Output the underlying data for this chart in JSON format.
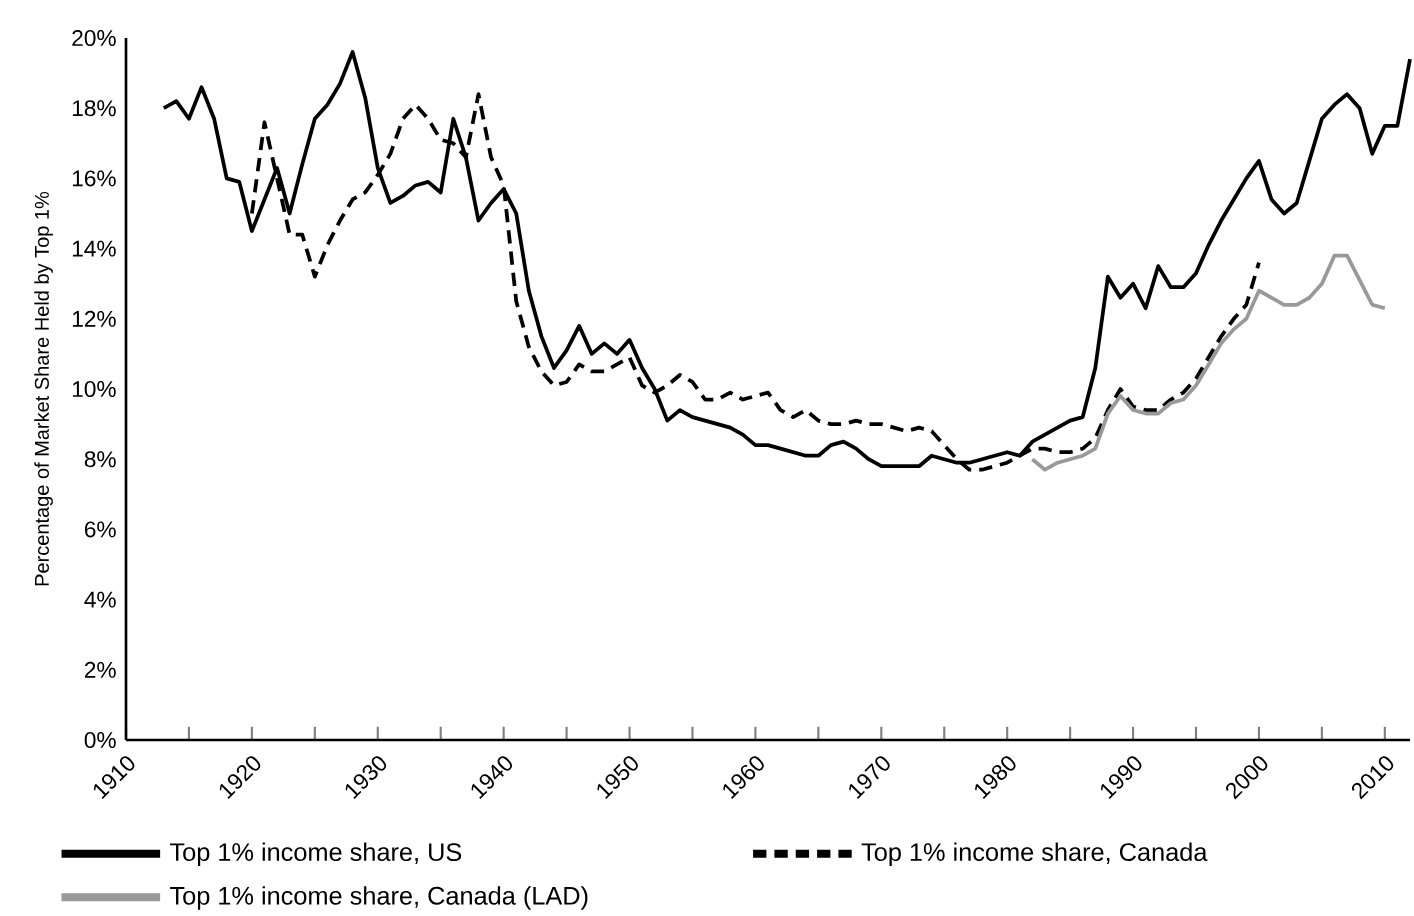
{
  "chart_data": {
    "type": "line",
    "ylabel": "Percentage of Market Share Held by Top 1%",
    "xlim": [
      1910,
      2012
    ],
    "ylim": [
      0,
      20
    ],
    "xticks": [
      1910,
      {
        "value": 1915,
        "label": null
      },
      1920,
      {
        "value": 1925,
        "label": null
      },
      1930,
      {
        "value": 1935,
        "label": null
      },
      1940,
      {
        "value": 1945,
        "label": null
      },
      1950,
      {
        "value": 1955,
        "label": null
      },
      1960,
      {
        "value": 1965,
        "label": null
      },
      1970,
      {
        "value": 1975,
        "label": null
      },
      1980,
      {
        "value": 1985,
        "label": null
      },
      1990,
      {
        "value": 1995,
        "label": null
      },
      2000,
      {
        "value": 2005,
        "label": null
      },
      2010
    ],
    "yticks": [
      {
        "value": 0,
        "label": "0%"
      },
      {
        "value": 2,
        "label": "2%"
      },
      {
        "value": 4,
        "label": "4%"
      },
      {
        "value": 6,
        "label": "6%"
      },
      {
        "value": 8,
        "label": "8%"
      },
      {
        "value": 10,
        "label": "10%"
      },
      {
        "value": 12,
        "label": "12%"
      },
      {
        "value": 14,
        "label": "14%"
      },
      {
        "value": 16,
        "label": "16%"
      },
      {
        "value": 18,
        "label": "18%"
      },
      {
        "value": 20,
        "label": "20%"
      }
    ],
    "legend": "bottom",
    "series": [
      {
        "name": "Top 1% income share, US",
        "color": "#000000",
        "line_style": "solid",
        "x": [
          1913,
          1914,
          1915,
          1916,
          1917,
          1918,
          1919,
          1920,
          1921,
          1922,
          1923,
          1924,
          1925,
          1926,
          1927,
          1928,
          1929,
          1930,
          1931,
          1932,
          1933,
          1934,
          1935,
          1936,
          1937,
          1938,
          1939,
          1940,
          1941,
          1942,
          1943,
          1944,
          1945,
          1946,
          1947,
          1948,
          1949,
          1950,
          1951,
          1952,
          1953,
          1954,
          1955,
          1956,
          1957,
          1958,
          1959,
          1960,
          1961,
          1962,
          1963,
          1964,
          1965,
          1966,
          1967,
          1968,
          1969,
          1970,
          1971,
          1972,
          1973,
          1974,
          1975,
          1976,
          1977,
          1978,
          1979,
          1980,
          1981,
          1982,
          1983,
          1984,
          1985,
          1986,
          1987,
          1988,
          1989,
          1990,
          1991,
          1992,
          1993,
          1994,
          1995,
          1996,
          1997,
          1998,
          1999,
          2000,
          2001,
          2002,
          2003,
          2004,
          2005,
          2006,
          2007,
          2008,
          2009,
          2010,
          2011,
          2012
        ],
        "values": [
          18.0,
          18.2,
          17.7,
          18.6,
          17.7,
          16.0,
          15.9,
          14.5,
          15.4,
          16.3,
          15.0,
          16.4,
          17.7,
          18.1,
          18.7,
          19.6,
          18.3,
          16.3,
          15.3,
          15.5,
          15.8,
          15.9,
          15.6,
          17.7,
          16.6,
          14.8,
          15.3,
          15.7,
          15.0,
          12.8,
          11.5,
          10.6,
          11.1,
          11.8,
          11.0,
          11.3,
          11.0,
          11.4,
          10.6,
          10.0,
          9.1,
          9.4,
          9.2,
          9.1,
          9.0,
          8.9,
          8.7,
          8.4,
          8.4,
          8.3,
          8.2,
          8.1,
          8.1,
          8.4,
          8.5,
          8.3,
          8.0,
          7.8,
          7.8,
          7.8,
          7.8,
          8.1,
          8.0,
          7.9,
          7.9,
          8.0,
          8.1,
          8.2,
          8.1,
          8.5,
          8.7,
          8.9,
          9.1,
          9.2,
          10.6,
          13.2,
          12.6,
          13.0,
          12.3,
          13.5,
          12.9,
          12.9,
          13.3,
          14.1,
          14.8,
          15.4,
          16.0,
          16.5,
          15.4,
          15.0,
          15.3,
          16.5,
          17.7,
          18.1,
          18.4,
          18.0,
          16.7,
          17.5,
          17.5,
          19.4
        ]
      },
      {
        "name": "Top 1% income share, Canada",
        "color": "#000000",
        "line_style": "dashed",
        "x": [
          1920,
          1921,
          1922,
          1923,
          1924,
          1925,
          1926,
          1927,
          1928,
          1929,
          1930,
          1931,
          1932,
          1933,
          1934,
          1935,
          1936,
          1937,
          1938,
          1939,
          1940,
          1941,
          1942,
          1943,
          1944,
          1945,
          1946,
          1947,
          1948,
          1949,
          1950,
          1951,
          1952,
          1953,
          1954,
          1955,
          1956,
          1957,
          1958,
          1959,
          1960,
          1961,
          1962,
          1963,
          1964,
          1965,
          1966,
          1967,
          1968,
          1969,
          1970,
          1971,
          1972,
          1973,
          1974,
          1975,
          1976,
          1977,
          1978,
          1979,
          1980,
          1981,
          1982,
          1983,
          1984,
          1985,
          1986,
          1987,
          1988,
          1989,
          1990,
          1991,
          1992,
          1993,
          1994,
          1995,
          1996,
          1997,
          1998,
          1999,
          2000
        ],
        "values": [
          15.0,
          17.6,
          16.0,
          14.4,
          14.4,
          13.2,
          14.1,
          14.8,
          15.4,
          15.6,
          16.1,
          16.7,
          17.7,
          18.1,
          17.7,
          17.1,
          17.0,
          16.6,
          18.4,
          16.6,
          15.8,
          12.5,
          11.2,
          10.5,
          10.1,
          10.2,
          10.7,
          10.5,
          10.5,
          10.7,
          10.9,
          10.1,
          9.9,
          10.1,
          10.4,
          10.2,
          9.7,
          9.7,
          9.9,
          9.7,
          9.8,
          9.9,
          9.4,
          9.2,
          9.4,
          9.1,
          9.0,
          9.0,
          9.1,
          9.0,
          9.0,
          8.9,
          8.8,
          8.9,
          8.8,
          8.4,
          8.0,
          7.7,
          7.7,
          7.8,
          7.9,
          8.1,
          8.3,
          8.3,
          8.2,
          8.2,
          8.3,
          8.6,
          9.4,
          10.0,
          9.5,
          9.4,
          9.4,
          9.7,
          9.9,
          10.3,
          10.9,
          11.5,
          12.0,
          12.4,
          13.6
        ]
      },
      {
        "name": "Top 1% income share, Canada (LAD)",
        "color": "#999999",
        "line_style": "solid",
        "x": [
          1982,
          1983,
          1984,
          1985,
          1986,
          1987,
          1988,
          1989,
          1990,
          1991,
          1992,
          1993,
          1994,
          1995,
          1996,
          1997,
          1998,
          1999,
          2000,
          2001,
          2002,
          2003,
          2004,
          2005,
          2006,
          2007,
          2008,
          2009,
          2010
        ],
        "values": [
          8.0,
          7.7,
          7.9,
          8.0,
          8.1,
          8.3,
          9.3,
          9.8,
          9.4,
          9.3,
          9.3,
          9.6,
          9.7,
          10.1,
          10.7,
          11.3,
          11.7,
          12.0,
          12.8,
          12.6,
          12.4,
          12.4,
          12.6,
          13.0,
          13.8,
          13.8,
          13.1,
          12.4,
          12.3
        ]
      }
    ]
  }
}
